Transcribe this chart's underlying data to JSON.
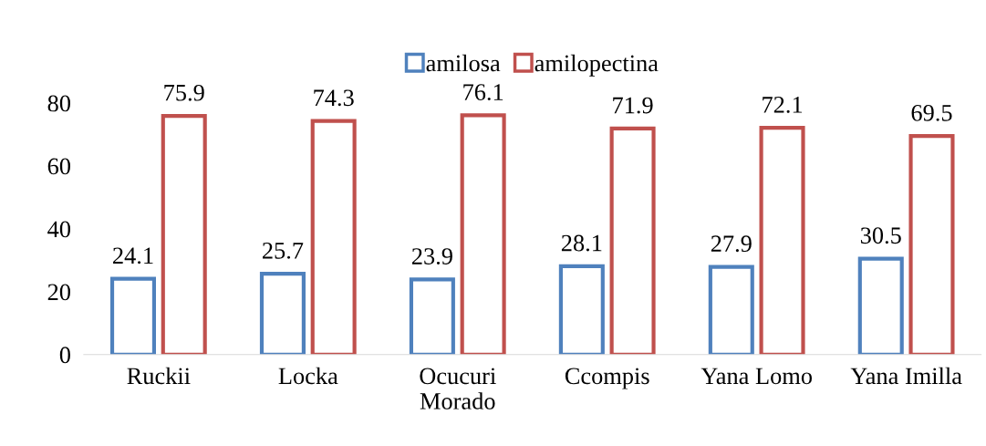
{
  "chart_data": {
    "type": "bar",
    "categories": [
      "Ruckii",
      "Locka",
      "Ocucuri\nMorado",
      "Ccompis",
      "Yana Lomo",
      "Yana Imilla"
    ],
    "series": [
      {
        "name": "amilosa",
        "color": "#4f81bd",
        "values": [
          24.1,
          25.7,
          23.9,
          28.1,
          27.9,
          30.5
        ]
      },
      {
        "name": "amilopectina",
        "color": "#c0504d",
        "values": [
          75.9,
          74.3,
          76.1,
          71.9,
          72.1,
          69.5
        ]
      }
    ],
    "ylim": [
      0,
      80
    ],
    "yticks": [
      0,
      20,
      40,
      60,
      80
    ],
    "grid": false,
    "legend": "top",
    "data_labels": true
  }
}
